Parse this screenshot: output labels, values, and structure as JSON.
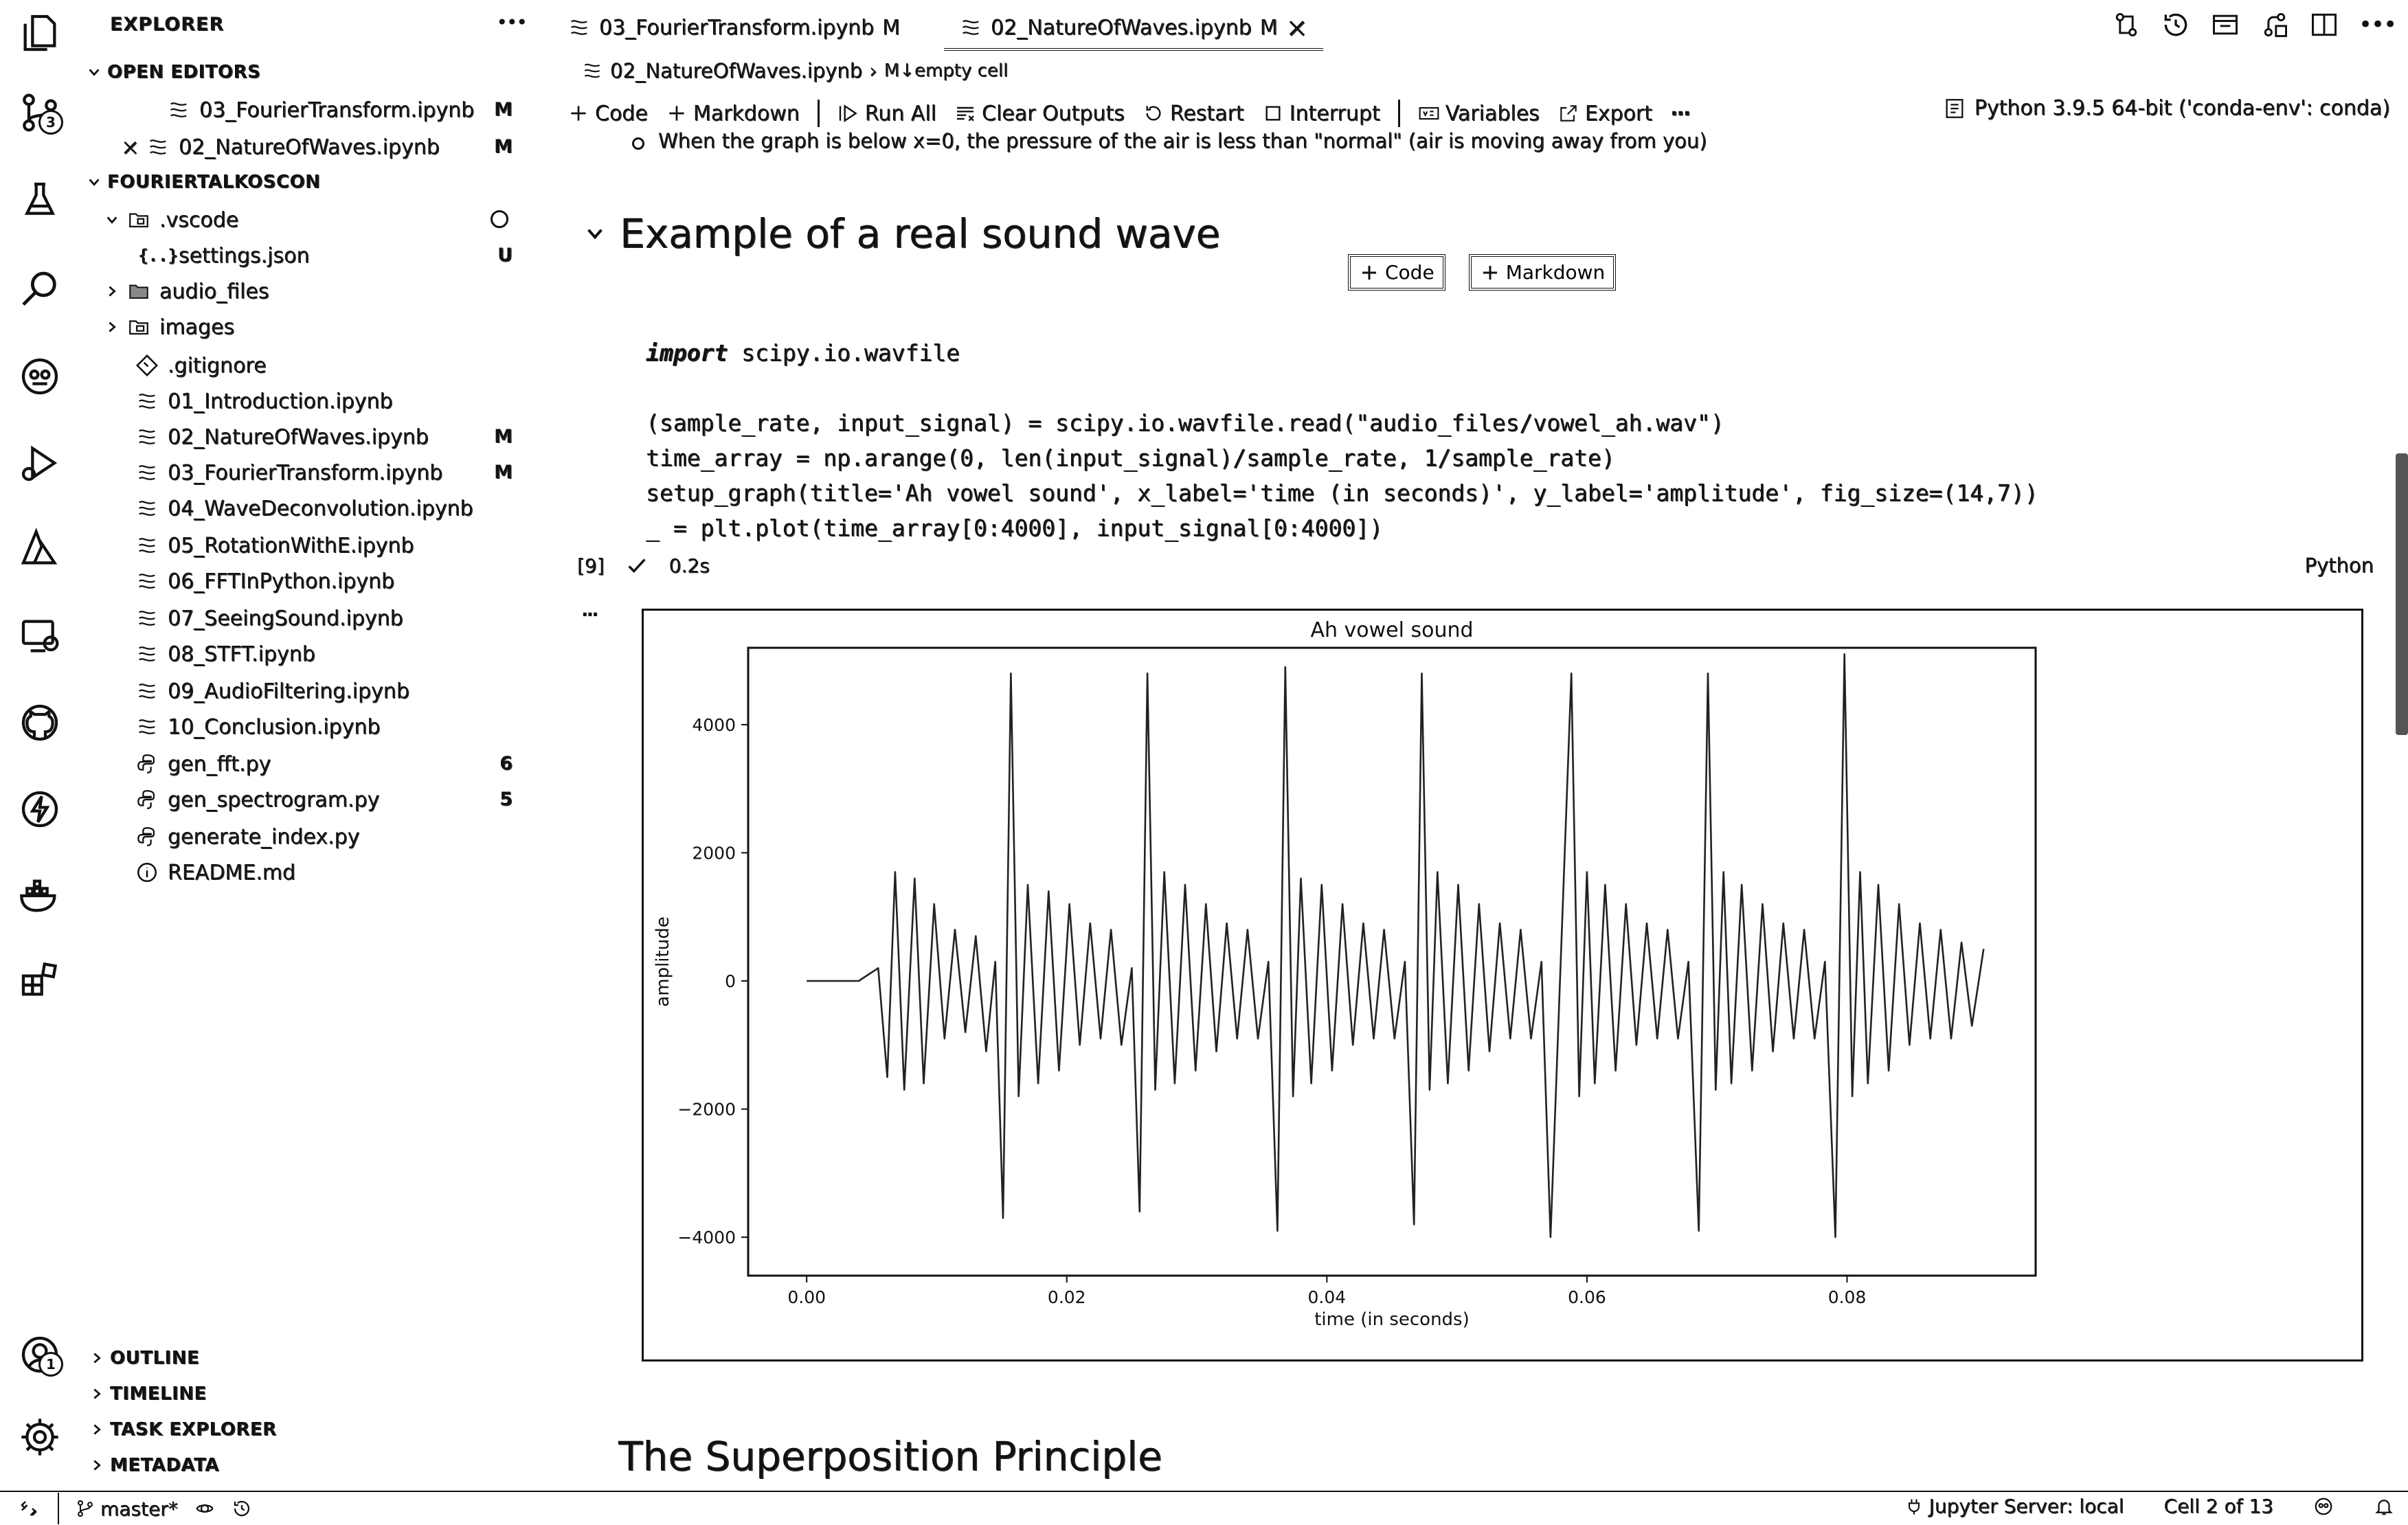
{
  "sidebar": {
    "title": "EXPLORER",
    "open_editors_label": "OPEN EDITORS",
    "open_editors": [
      {
        "name": "03_FourierTransform.ipynb",
        "decoration": "M",
        "close": ""
      },
      {
        "name": "02_NatureOfWaves.ipynb",
        "decoration": "M",
        "close": "×"
      }
    ],
    "workspace_label": "FOURIERTALKOSCON",
    "tree": [
      {
        "name": ".vscode",
        "decoration": "",
        "icon": "folder-open-icon"
      },
      {
        "name": "settings.json",
        "decoration": "U",
        "icon": "json-icon"
      },
      {
        "name": "audio_files",
        "decoration": "",
        "icon": "folder-icon"
      },
      {
        "name": "images",
        "decoration": "",
        "icon": "folder-images-icon"
      },
      {
        "name": ".gitignore",
        "decoration": "",
        "icon": "git-icon"
      },
      {
        "name": "01_Introduction.ipynb",
        "decoration": "",
        "icon": "notebook-icon"
      },
      {
        "name": "02_NatureOfWaves.ipynb",
        "decoration": "M",
        "icon": "notebook-icon"
      },
      {
        "name": "03_FourierTransform.ipynb",
        "decoration": "M",
        "icon": "notebook-icon"
      },
      {
        "name": "04_WaveDeconvolution.ipynb",
        "decoration": "",
        "icon": "notebook-icon"
      },
      {
        "name": "05_RotationWithE.ipynb",
        "decoration": "",
        "icon": "notebook-icon"
      },
      {
        "name": "06_FFTInPython.ipynb",
        "decoration": "",
        "icon": "notebook-icon"
      },
      {
        "name": "07_SeeingSound.ipynb",
        "decoration": "",
        "icon": "notebook-icon"
      },
      {
        "name": "08_STFT.ipynb",
        "decoration": "",
        "icon": "notebook-icon"
      },
      {
        "name": "09_AudioFiltering.ipynb",
        "decoration": "",
        "icon": "notebook-icon"
      },
      {
        "name": "10_Conclusion.ipynb",
        "decoration": "",
        "icon": "notebook-icon"
      },
      {
        "name": "gen_fft.py",
        "decoration": "6",
        "icon": "python-icon"
      },
      {
        "name": "gen_spectrogram.py",
        "decoration": "5",
        "icon": "python-icon"
      },
      {
        "name": "generate_index.py",
        "decoration": "",
        "icon": "python-icon"
      },
      {
        "name": "README.md",
        "decoration": "",
        "icon": "info-icon"
      }
    ],
    "bottom_sections": [
      "OUTLINE",
      "TIMELINE",
      "TASK EXPLORER",
      "METADATA"
    ]
  },
  "activity": {
    "source_control_badge": "3",
    "accounts_badge": "1"
  },
  "tabs": [
    {
      "label": "03_FourierTransform.ipynb",
      "decoration": "M"
    },
    {
      "label": "02_NatureOfWaves.ipynb",
      "decoration": "M",
      "close": "×"
    }
  ],
  "breadcrumb": {
    "file": "02_NatureOfWaves.ipynb",
    "sep": "›",
    "cell": "M↓empty cell"
  },
  "toolbar": {
    "code": "Code",
    "markdown": "Markdown",
    "run_all": "Run All",
    "clear_outputs": "Clear Outputs",
    "restart": "Restart",
    "interrupt": "Interrupt",
    "variables": "Variables",
    "export": "Export",
    "more": "···"
  },
  "kernel": "Python 3.9.5 64-bit ('conda-env': conda)",
  "notebook": {
    "bullet": "When the graph is below x=0, the pressure of the air is less than \"normal\" (air is moving away from you)",
    "heading_example": "Example of a real sound wave",
    "insert_code": "Code",
    "insert_markdown": "Markdown",
    "code_line1_kw": "import",
    "code_line1_rest": " scipy.io.wavfile",
    "code_line2": "(sample_rate, input_signal) = scipy.io.wavfile.read(\"audio_files/vowel_ah.wav\")",
    "code_line3": "time_array = np.arange(0, len(input_signal)/sample_rate, 1/sample_rate)",
    "code_line4": "setup_graph(title='Ah vowel sound', x_label='time (in seconds)', y_label='amplitude', fig_size=(14,7))",
    "code_line5": "_ = plt.plot(time_array[0:4000], input_signal[0:4000])",
    "exec_count": "[9]",
    "exec_time": "0.2s",
    "language": "Python",
    "output_more": "···",
    "heading_super": "The Superposition Principle"
  },
  "chart_data": {
    "type": "line",
    "title": "Ah vowel sound",
    "xlabel": "time (in seconds)",
    "ylabel": "amplitude",
    "xlim": [
      -0.0045,
      0.0945
    ],
    "ylim": [
      -4600,
      5200
    ],
    "xticks": [
      0.0,
      0.02,
      0.04,
      0.06,
      0.08
    ],
    "xtick_labels": [
      "0.00",
      "0.02",
      "0.04",
      "0.06",
      "0.08"
    ],
    "yticks": [
      -4000,
      -2000,
      0,
      2000,
      4000
    ],
    "ytick_labels": [
      "−4000",
      "−2000",
      "0",
      "2000",
      "4000"
    ],
    "grid": false,
    "series": [
      {
        "color": "#222222",
        "x": [
          0.0,
          0.004,
          0.0055,
          0.0062,
          0.0068,
          0.0075,
          0.0083,
          0.009,
          0.0098,
          0.0106,
          0.0114,
          0.0122,
          0.013,
          0.0138,
          0.0145,
          0.0151,
          0.0157,
          0.0163,
          0.017,
          0.0178,
          0.0186,
          0.0194,
          0.0202,
          0.021,
          0.0218,
          0.0226,
          0.0234,
          0.0242,
          0.025,
          0.0256,
          0.0262,
          0.0268,
          0.0275,
          0.0283,
          0.0291,
          0.0299,
          0.0307,
          0.0315,
          0.0323,
          0.0331,
          0.0339,
          0.0347,
          0.0355,
          0.0362,
          0.0368,
          0.0374,
          0.038,
          0.0388,
          0.0396,
          0.0404,
          0.0412,
          0.042,
          0.0428,
          0.0436,
          0.0444,
          0.0452,
          0.046,
          0.0467,
          0.0473,
          0.0479,
          0.0485,
          0.0493,
          0.0501,
          0.0509,
          0.0517,
          0.0525,
          0.0533,
          0.0541,
          0.0549,
          0.0557,
          0.0565,
          0.0572,
          0.0588,
          0.0594,
          0.06,
          0.0606,
          0.0614,
          0.0622,
          0.063,
          0.0638,
          0.0646,
          0.0654,
          0.0662,
          0.067,
          0.0678,
          0.0686,
          0.0693,
          0.0699,
          0.0705,
          0.0711,
          0.0719,
          0.0727,
          0.0735,
          0.0743,
          0.0751,
          0.0759,
          0.0767,
          0.0775,
          0.0783,
          0.0791,
          0.0798,
          0.0804,
          0.081,
          0.0816,
          0.0824,
          0.0832,
          0.084,
          0.0848,
          0.0856,
          0.0864,
          0.0872,
          0.088,
          0.0888,
          0.0896,
          0.0905
        ],
        "y": [
          0,
          0,
          200,
          -1500,
          1700,
          -1700,
          1600,
          -1600,
          1200,
          -900,
          800,
          -800,
          700,
          -1100,
          300,
          -3700,
          4800,
          -1800,
          1500,
          -1600,
          1400,
          -1400,
          1200,
          -1000,
          900,
          -900,
          800,
          -1000,
          200,
          -3600,
          4800,
          -1700,
          1700,
          -1600,
          1500,
          -1400,
          1200,
          -1100,
          900,
          -900,
          800,
          -900,
          300,
          -3900,
          4900,
          -1800,
          1600,
          -1600,
          1500,
          -1400,
          1200,
          -1000,
          900,
          -900,
          800,
          -900,
          300,
          -3800,
          4800,
          -1700,
          1700,
          -1600,
          1500,
          -1400,
          1200,
          -1100,
          900,
          -900,
          800,
          -900,
          300,
          -4000,
          4800,
          -1800,
          1700,
          -1600,
          1500,
          -1400,
          1200,
          -1000,
          900,
          -900,
          800,
          -900,
          300,
          -3900,
          4800,
          -1700,
          1700,
          -1600,
          1500,
          -1400,
          1200,
          -1100,
          900,
          -900,
          800,
          -900,
          300,
          -4000,
          5100,
          -1800,
          1700,
          -1600,
          1500,
          -1400,
          1200,
          -1000,
          900,
          -900,
          800,
          -900,
          600,
          -700,
          500
        ]
      }
    ]
  },
  "statusbar": {
    "branch": "master*",
    "jupyter": "Jupyter Server: local",
    "cell": "Cell 2 of 13"
  }
}
